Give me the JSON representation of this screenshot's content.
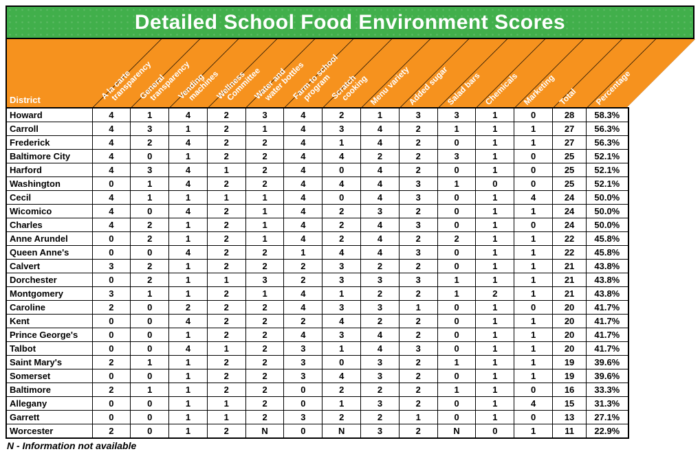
{
  "title": "Detailed School Food Environment Scores",
  "colors": {
    "banner_green": "#41AF4B",
    "header_orange": "#F6921E",
    "text_white": "#FFFFFF",
    "border_black": "#000000"
  },
  "header": {
    "district_label": "District",
    "diagonal_columns": [
      {
        "lines": [
          "A la carte",
          "transparency"
        ]
      },
      {
        "lines": [
          "General",
          "transparency"
        ]
      },
      {
        "lines": [
          "Vending",
          "machines"
        ]
      },
      {
        "lines": [
          "Wellness",
          "Committee"
        ]
      },
      {
        "lines": [
          "Water and",
          "water bottles"
        ]
      },
      {
        "lines": [
          "Farm to school",
          "program"
        ]
      },
      {
        "lines": [
          "Scratch",
          "cooking"
        ]
      },
      {
        "lines": [
          "Menu variety"
        ]
      },
      {
        "lines": [
          "Added sugar"
        ]
      },
      {
        "lines": [
          "Salad bars"
        ]
      },
      {
        "lines": [
          "Chemicals"
        ]
      },
      {
        "lines": [
          "Marketing"
        ]
      },
      {
        "lines": [
          "Total"
        ]
      },
      {
        "lines": [
          "Percentage"
        ]
      }
    ]
  },
  "footnote": "N - Information not available",
  "chart_data": {
    "type": "table",
    "title": "Detailed School Food Environment Scores",
    "columns": [
      "District",
      "A la carte transparency",
      "General transparency",
      "Vending machines",
      "Wellness Committee",
      "Water and water bottles",
      "Farm to school program",
      "Scratch cooking",
      "Menu variety",
      "Added sugar",
      "Salad bars",
      "Chemicals",
      "Marketing",
      "Total",
      "Percentage"
    ],
    "rows": [
      [
        "Howard",
        4,
        1,
        4,
        2,
        3,
        4,
        2,
        1,
        3,
        3,
        1,
        0,
        28,
        "58.3%"
      ],
      [
        "Carroll",
        4,
        3,
        1,
        2,
        1,
        4,
        3,
        4,
        2,
        1,
        1,
        1,
        27,
        "56.3%"
      ],
      [
        "Frederick",
        4,
        2,
        4,
        2,
        2,
        4,
        1,
        4,
        2,
        0,
        1,
        1,
        27,
        "56.3%"
      ],
      [
        "Baltimore City",
        4,
        0,
        1,
        2,
        2,
        4,
        4,
        2,
        2,
        3,
        1,
        0,
        25,
        "52.1%"
      ],
      [
        "Harford",
        4,
        3,
        4,
        1,
        2,
        4,
        0,
        4,
        2,
        0,
        1,
        0,
        25,
        "52.1%"
      ],
      [
        "Washington",
        0,
        1,
        4,
        2,
        2,
        4,
        4,
        4,
        3,
        1,
        0,
        0,
        25,
        "52.1%"
      ],
      [
        "Cecil",
        4,
        1,
        1,
        1,
        1,
        4,
        0,
        4,
        3,
        0,
        1,
        4,
        24,
        "50.0%"
      ],
      [
        "Wicomico",
        4,
        0,
        4,
        2,
        1,
        4,
        2,
        3,
        2,
        0,
        1,
        1,
        24,
        "50.0%"
      ],
      [
        "Charles",
        4,
        2,
        1,
        2,
        1,
        4,
        2,
        4,
        3,
        0,
        1,
        0,
        24,
        "50.0%"
      ],
      [
        "Anne Arundel",
        0,
        2,
        1,
        2,
        1,
        4,
        2,
        4,
        2,
        2,
        1,
        1,
        22,
        "45.8%"
      ],
      [
        "Queen Anne's",
        0,
        0,
        4,
        2,
        2,
        1,
        4,
        4,
        3,
        0,
        1,
        1,
        22,
        "45.8%"
      ],
      [
        "Calvert",
        3,
        2,
        1,
        2,
        2,
        2,
        3,
        2,
        2,
        0,
        1,
        1,
        21,
        "43.8%"
      ],
      [
        "Dorchester",
        0,
        2,
        1,
        1,
        3,
        2,
        3,
        3,
        3,
        1,
        1,
        1,
        21,
        "43.8%"
      ],
      [
        "Montgomery",
        3,
        1,
        1,
        2,
        1,
        4,
        1,
        2,
        2,
        1,
        2,
        1,
        21,
        "43.8%"
      ],
      [
        "Caroline",
        2,
        0,
        2,
        2,
        2,
        4,
        3,
        3,
        1,
        0,
        1,
        0,
        20,
        "41.7%"
      ],
      [
        "Kent",
        0,
        0,
        4,
        2,
        2,
        2,
        4,
        2,
        2,
        0,
        1,
        1,
        20,
        "41.7%"
      ],
      [
        "Prince George's",
        0,
        0,
        1,
        2,
        2,
        4,
        3,
        4,
        2,
        0,
        1,
        1,
        20,
        "41.7%"
      ],
      [
        "Talbot",
        0,
        0,
        4,
        1,
        2,
        3,
        1,
        4,
        3,
        0,
        1,
        1,
        20,
        "41.7%"
      ],
      [
        "Saint Mary's",
        2,
        1,
        1,
        2,
        2,
        3,
        0,
        3,
        2,
        1,
        1,
        1,
        19,
        "39.6%"
      ],
      [
        "Somerset",
        0,
        0,
        1,
        2,
        2,
        3,
        4,
        3,
        2,
        0,
        1,
        1,
        19,
        "39.6%"
      ],
      [
        "Baltimore",
        2,
        1,
        1,
        2,
        2,
        0,
        2,
        2,
        2,
        1,
        1,
        0,
        16,
        "33.3%"
      ],
      [
        "Allegany",
        0,
        0,
        1,
        1,
        2,
        0,
        1,
        3,
        2,
        0,
        1,
        4,
        15,
        "31.3%"
      ],
      [
        "Garrett",
        0,
        0,
        1,
        1,
        2,
        3,
        2,
        2,
        1,
        0,
        1,
        0,
        13,
        "27.1%"
      ],
      [
        "Worcester",
        2,
        0,
        1,
        2,
        "N",
        0,
        "N",
        3,
        2,
        "N",
        0,
        1,
        11,
        "22.9%"
      ]
    ],
    "footnote": "N - Information not available"
  }
}
